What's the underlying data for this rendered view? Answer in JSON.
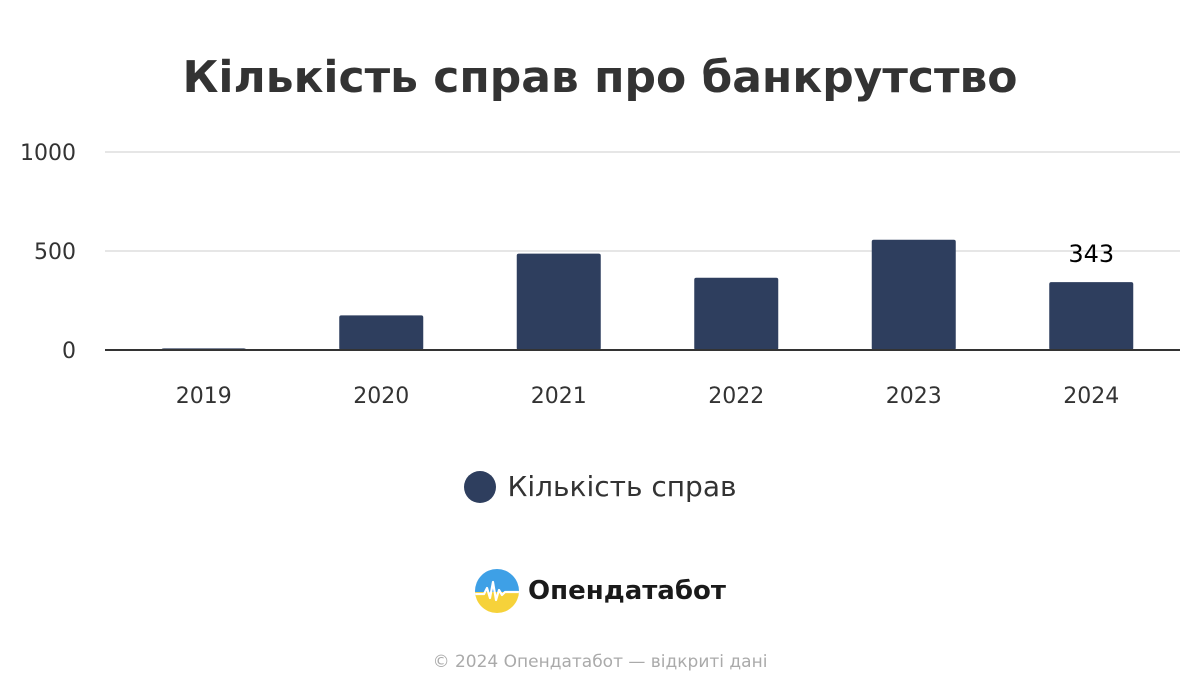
{
  "colors": {
    "bar": "#2e3e5e",
    "axis": "#333333",
    "grid": "#dddddd",
    "text": "#333333"
  },
  "chart_data": {
    "type": "bar",
    "title": "Кількість справ про банкрутство",
    "xlabel": "",
    "ylabel": "",
    "categories": [
      "2019",
      "2020",
      "2021",
      "2022",
      "2023",
      "2024"
    ],
    "series": [
      {
        "name": "Кількість справ",
        "values": [
          8,
          175,
          487,
          365,
          557,
          343
        ]
      }
    ],
    "data_labels": [
      {
        "category": "2024",
        "value": 343,
        "text": "343"
      }
    ],
    "ylim": [
      0,
      1000
    ],
    "yticks": [
      0,
      500,
      1000
    ],
    "grid": true,
    "legend": "bottom-center"
  },
  "brand": {
    "name": "Опендатабот",
    "logo_icon": "opendatabot-logo-icon"
  },
  "footer": {
    "text": "© 2024 Опендатабот — відкриті дані"
  }
}
